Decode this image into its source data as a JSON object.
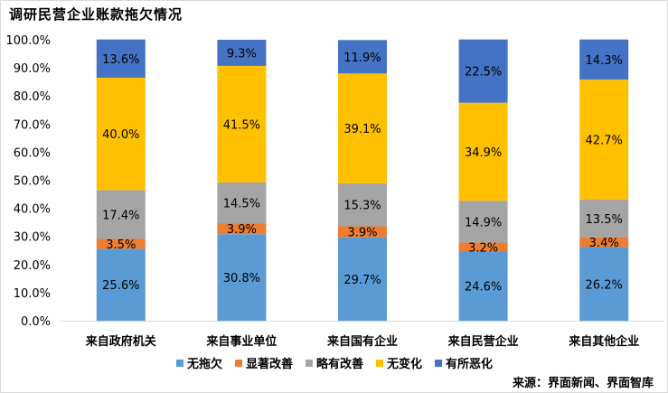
{
  "page": {
    "title": "调研民营企业账款拖欠情况",
    "source": "来源：界面新闻、界面智库"
  },
  "chart_data": {
    "type": "bar",
    "stacked": true,
    "percent_stacked": true,
    "title": "调研民营企业账款拖欠情况",
    "xlabel": "",
    "ylabel": "",
    "ylim": [
      0,
      100
    ],
    "y_ticks": [
      "0.0%",
      "10.0%",
      "20.0%",
      "30.0%",
      "40.0%",
      "50.0%",
      "60.0%",
      "70.0%",
      "80.0%",
      "90.0%",
      "100.0%"
    ],
    "grid": false,
    "legend_position": "bottom",
    "categories": [
      "来自政府机关",
      "来自事业单位",
      "来自国有企业",
      "来自民营企业",
      "来自其他企业"
    ],
    "series": [
      {
        "name": "无拖欠",
        "color": "#5b9bd5",
        "values": [
          25.6,
          30.8,
          29.7,
          24.6,
          26.2
        ],
        "labels": [
          "25.6%",
          "30.8%",
          "29.7%",
          "24.6%",
          "26.2%"
        ]
      },
      {
        "name": "显著改善",
        "color": "#ed7d31",
        "values": [
          3.5,
          3.9,
          3.9,
          3.2,
          3.4
        ],
        "labels": [
          "3.5%",
          "3.9%",
          "3.9%",
          "3.2%",
          "3.4%"
        ]
      },
      {
        "name": "略有改善",
        "color": "#a5a5a5",
        "values": [
          17.4,
          14.5,
          15.3,
          14.9,
          13.5
        ],
        "labels": [
          "17.4%",
          "14.5%",
          "15.3%",
          "14.9%",
          "13.5%"
        ]
      },
      {
        "name": "无变化",
        "color": "#ffc000",
        "values": [
          40.0,
          41.5,
          39.1,
          34.9,
          42.7
        ],
        "labels": [
          "40.0%",
          "41.5%",
          "39.1%",
          "34.9%",
          "42.7%"
        ]
      },
      {
        "name": "有所恶化",
        "color": "#4472c4",
        "values": [
          13.6,
          9.3,
          11.9,
          22.5,
          14.3
        ],
        "labels": [
          "13.6%",
          "9.3%",
          "11.9%",
          "22.5%",
          "14.3%"
        ]
      }
    ]
  }
}
